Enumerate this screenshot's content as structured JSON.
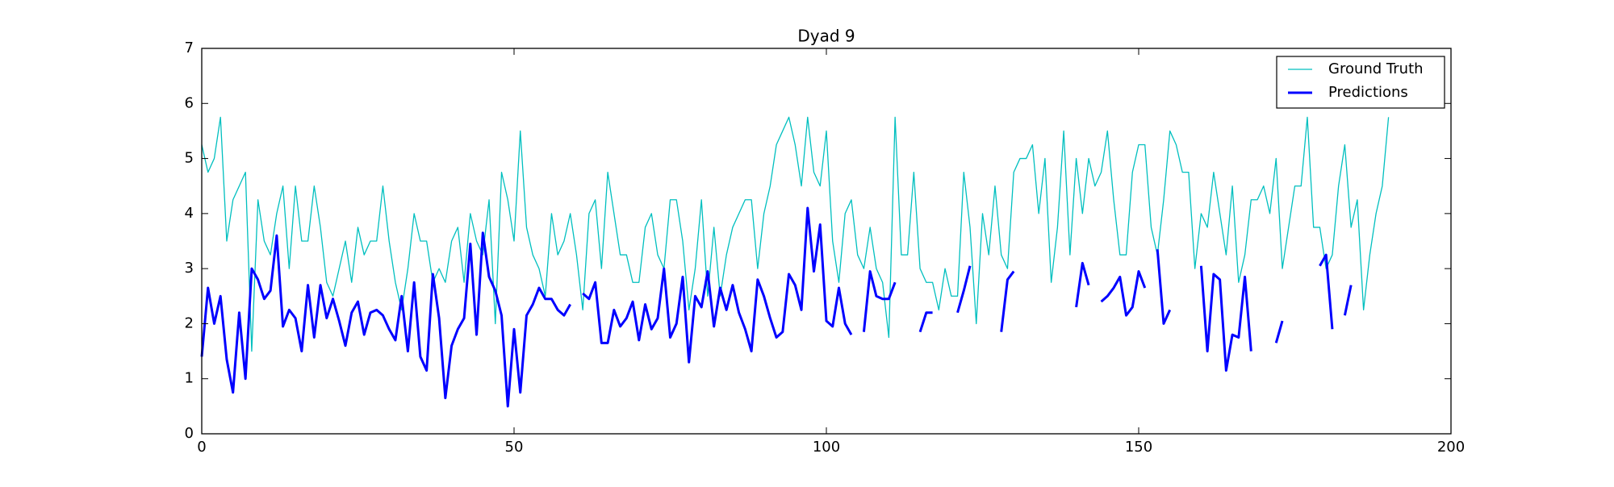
{
  "chart_data": {
    "type": "line",
    "title": "Dyad 9",
    "x": [
      0,
      1,
      2,
      3,
      4,
      5,
      6,
      7,
      8,
      9,
      10,
      11,
      12,
      13,
      14,
      15,
      16,
      17,
      18,
      19,
      20,
      21,
      22,
      23,
      24,
      25,
      26,
      27,
      28,
      29,
      30,
      31,
      32,
      33,
      34,
      35,
      36,
      37,
      38,
      39,
      40,
      41,
      42,
      43,
      44,
      45,
      46,
      47,
      48,
      49,
      50,
      51,
      52,
      53,
      54,
      55,
      56,
      57,
      58,
      59,
      60,
      61,
      62,
      63,
      64,
      65,
      66,
      67,
      68,
      69,
      70,
      71,
      72,
      73,
      74,
      75,
      76,
      77,
      78,
      79,
      80,
      81,
      82,
      83,
      84,
      85,
      86,
      87,
      88,
      89,
      90,
      91,
      92,
      93,
      94,
      95,
      96,
      97,
      98,
      99,
      100,
      101,
      102,
      103,
      104,
      105,
      106,
      107,
      108,
      109,
      110,
      111,
      112,
      113,
      114,
      115,
      116,
      117,
      118,
      119,
      120,
      121,
      122,
      123,
      124,
      125,
      126,
      127,
      128,
      129,
      130,
      131,
      132,
      133,
      134,
      135,
      136,
      137,
      138,
      139,
      140,
      141,
      142,
      143,
      144,
      145,
      146,
      147,
      148,
      149,
      150,
      151,
      152,
      153,
      154,
      155,
      156,
      157,
      158,
      159,
      160,
      161,
      162,
      163,
      164,
      165,
      166,
      167,
      168,
      169,
      170,
      171,
      172,
      173,
      174,
      175,
      176,
      177,
      178,
      179,
      180,
      181,
      182,
      183,
      184,
      185,
      186,
      187,
      188,
      189,
      190
    ],
    "series": [
      {
        "name": "Ground Truth",
        "color": "#00bfbf",
        "width": 1.3,
        "values": [
          5.25,
          4.75,
          5.0,
          5.75,
          3.5,
          4.25,
          4.5,
          4.75,
          1.5,
          4.25,
          3.5,
          3.25,
          4.0,
          4.5,
          3.0,
          4.5,
          3.5,
          3.5,
          4.5,
          3.75,
          2.75,
          2.5,
          3.0,
          3.5,
          2.75,
          3.75,
          3.25,
          3.5,
          3.5,
          4.5,
          3.5,
          2.75,
          2.25,
          3.0,
          4.0,
          3.5,
          3.5,
          2.75,
          3.0,
          2.75,
          3.5,
          3.75,
          2.75,
          4.0,
          3.5,
          3.25,
          4.25,
          2.0,
          4.75,
          4.25,
          3.5,
          5.5,
          3.75,
          3.25,
          3.0,
          2.5,
          4.0,
          3.25,
          3.5,
          4.0,
          3.25,
          2.25,
          4.0,
          4.25,
          3.0,
          4.75,
          4.0,
          3.25,
          3.25,
          2.75,
          2.75,
          3.75,
          4.0,
          3.25,
          3.0,
          4.25,
          4.25,
          3.5,
          2.25,
          3.0,
          4.25,
          2.5,
          3.75,
          2.5,
          3.25,
          3.75,
          4.0,
          4.25,
          4.25,
          3.0,
          4.0,
          4.5,
          5.25,
          5.5,
          5.75,
          5.25,
          4.5,
          5.75,
          4.75,
          4.5,
          5.5,
          3.5,
          2.75,
          4.0,
          4.25,
          3.25,
          3.0,
          3.75,
          3.0,
          2.75,
          1.75,
          5.75,
          3.25,
          3.25,
          4.75,
          3.0,
          2.75,
          2.75,
          2.25,
          3.0,
          2.5,
          2.5,
          4.75,
          3.75,
          2.0,
          4.0,
          3.25,
          4.5,
          3.25,
          3.0,
          4.75,
          5.0,
          5.0,
          5.25,
          4.0,
          5.0,
          2.75,
          3.75,
          5.5,
          3.25,
          5.0,
          4.0,
          5.0,
          4.5,
          4.75,
          5.5,
          4.25,
          3.25,
          3.25,
          4.75,
          5.25,
          5.25,
          3.75,
          3.25,
          4.25,
          5.5,
          5.25,
          4.75,
          4.75,
          3.0,
          4.0,
          3.75,
          4.75,
          4.0,
          3.25,
          4.5,
          2.75,
          3.25,
          4.25,
          4.25,
          4.5,
          4.0,
          5.0,
          3.0,
          3.75,
          4.5,
          4.5,
          5.75,
          3.75,
          3.75,
          3.0,
          3.25,
          4.5,
          5.25,
          3.75,
          4.25,
          2.25,
          3.25,
          4.0,
          4.5,
          5.75
        ]
      },
      {
        "name": "Predictions",
        "color": "#0000ff",
        "width": 3,
        "values": [
          1.4,
          2.65,
          2.0,
          2.5,
          1.35,
          0.75,
          2.2,
          1.0,
          3.0,
          2.8,
          2.45,
          2.6,
          3.6,
          1.95,
          2.25,
          2.1,
          1.5,
          2.7,
          1.75,
          2.7,
          2.1,
          2.45,
          2.05,
          1.6,
          2.2,
          2.4,
          1.8,
          2.2,
          2.25,
          2.15,
          1.9,
          1.7,
          2.5,
          1.5,
          2.75,
          1.4,
          1.15,
          2.9,
          2.1,
          0.65,
          1.6,
          1.9,
          2.1,
          3.45,
          1.8,
          3.65,
          2.85,
          2.6,
          2.15,
          0.5,
          1.9,
          0.75,
          2.15,
          2.35,
          2.65,
          2.45,
          2.45,
          2.25,
          2.15,
          2.35,
          null,
          2.55,
          2.45,
          2.75,
          1.65,
          1.65,
          2.25,
          1.95,
          2.1,
          2.4,
          1.7,
          2.35,
          1.9,
          2.1,
          3.0,
          1.75,
          2.0,
          2.85,
          1.3,
          2.5,
          2.3,
          2.95,
          1.95,
          2.65,
          2.25,
          2.7,
          2.2,
          1.9,
          1.5,
          2.8,
          2.5,
          2.1,
          1.75,
          1.85,
          2.9,
          2.7,
          2.25,
          4.1,
          2.95,
          3.8,
          2.05,
          1.95,
          2.65,
          2.0,
          1.8,
          null,
          1.85,
          2.95,
          2.5,
          2.45,
          2.45,
          2.75,
          null,
          null,
          null,
          1.85,
          2.2,
          2.2,
          null,
          null,
          null,
          2.2,
          2.6,
          3.05,
          null,
          null,
          null,
          null,
          1.85,
          2.8,
          2.95,
          null,
          null,
          null,
          null,
          null,
          null,
          null,
          null,
          null,
          2.3,
          3.1,
          2.7,
          null,
          2.4,
          2.5,
          2.65,
          2.85,
          2.15,
          2.3,
          2.95,
          2.65,
          null,
          3.35,
          2.0,
          2.25,
          null,
          null,
          null,
          null,
          3.05,
          1.5,
          2.9,
          2.8,
          1.15,
          1.8,
          1.75,
          2.85,
          1.5,
          null,
          null,
          null,
          1.65,
          2.05,
          null,
          null,
          null,
          null,
          null,
          3.05,
          3.25,
          1.9,
          null,
          2.15,
          2.7,
          null,
          null,
          null,
          null,
          null,
          null
        ]
      }
    ],
    "xlim": [
      0,
      200
    ],
    "xticks": [
      0,
      50,
      100,
      150,
      200
    ],
    "ylim": [
      0,
      7
    ],
    "yticks": [
      0,
      1,
      2,
      3,
      4,
      5,
      6,
      7
    ],
    "legend": "upper right"
  }
}
